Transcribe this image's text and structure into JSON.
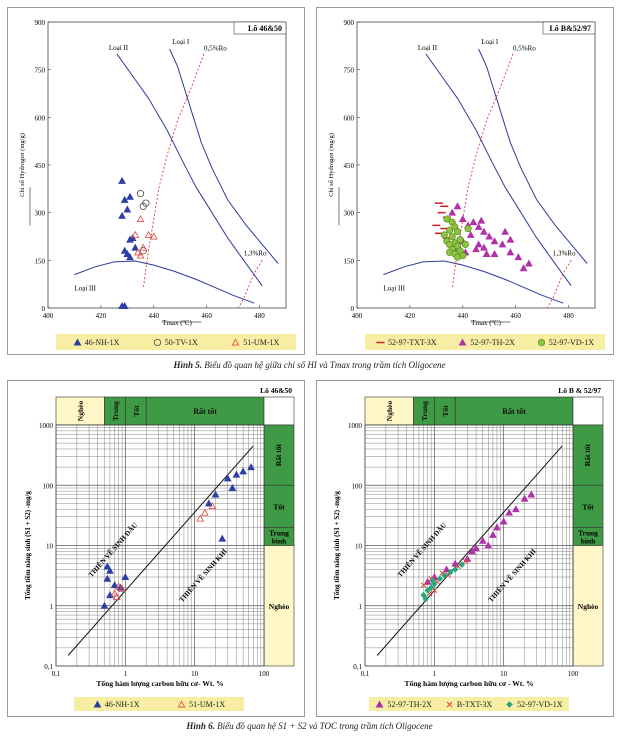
{
  "figures": [
    {
      "caption_label": "Hình 5.",
      "caption_text": "Biểu đồ quan hệ giữa chỉ số HI và Tmax trong trầm tích Oligocene"
    },
    {
      "caption_label": "Hình 6.",
      "caption_text": "Biểu đồ quan hệ S1 + S2 và TOC trong trầm tích Oligocene"
    }
  ],
  "chart_data": [
    {
      "type": "scatter",
      "panel": "Lô 46&50",
      "xlabel": "Tmax (ºC)",
      "ylabel": "Chỉ số Hydrogen (mg/g)",
      "xlim": [
        400,
        490
      ],
      "ylim": [
        0,
        900
      ],
      "xticks": [
        "400",
        "420",
        "440",
        "460",
        "480"
      ],
      "yticks": [
        "0",
        "150",
        "300",
        "450",
        "600",
        "750",
        "900"
      ],
      "annotations": [
        "Loại I",
        "Loại II",
        "Loại III",
        "0,5%Ro",
        "1,3%Ro"
      ],
      "series": [
        {
          "name": "46-NH-1X",
          "marker": "triangle",
          "color": "#2c3fa6",
          "points": [
            [
              428,
              400
            ],
            [
              429,
              340
            ],
            [
              431,
              350
            ],
            [
              430,
              310
            ],
            [
              428,
              290
            ],
            [
              431,
              215
            ],
            [
              432,
              220
            ],
            [
              429,
              180
            ],
            [
              430,
              170
            ],
            [
              431,
              160
            ],
            [
              433,
              190
            ],
            [
              428,
              3
            ],
            [
              429,
              0
            ]
          ]
        },
        {
          "name": "50-TV-1X",
          "marker": "circle-open",
          "color": "#333333",
          "points": [
            [
              435,
              360
            ],
            [
              436,
              320
            ],
            [
              437,
              330
            ],
            [
              436,
              180
            ]
          ]
        },
        {
          "name": "51-UM-1X",
          "marker": "triangle-open",
          "color": "#e0463d",
          "points": [
            [
              435,
              280
            ],
            [
              433,
              230
            ],
            [
              438,
              230
            ],
            [
              440,
              225
            ],
            [
              436,
              190
            ],
            [
              435,
              165
            ],
            [
              434,
              175
            ]
          ]
        }
      ],
      "legend": [
        "46-NH-1X",
        "50-TV-1X",
        "51-UM-1X"
      ]
    },
    {
      "type": "scatter",
      "panel": "Lô B&52/97",
      "xlabel": "Tmax (ºC)",
      "ylabel": "Chỉ số Hydrogen (mg/g)",
      "xlim": [
        400,
        490
      ],
      "ylim": [
        0,
        900
      ],
      "xticks": [
        "400",
        "420",
        "440",
        "460",
        "480"
      ],
      "yticks": [
        "0",
        "150",
        "300",
        "450",
        "600",
        "750",
        "900"
      ],
      "annotations": [
        "Loại I",
        "Loại II",
        "Loại III",
        "0,5%Ro",
        "1,3%Ro"
      ],
      "series": [
        {
          "name": "52-97-TXT-3X",
          "marker": "dash",
          "color": "#d11c2a",
          "points": [
            [
              431,
              330
            ],
            [
              433,
              320
            ],
            [
              432,
              300
            ],
            [
              434,
              285
            ],
            [
              430,
              260
            ],
            [
              433,
              250
            ],
            [
              431,
              235
            ],
            [
              434,
              220
            ]
          ]
        },
        {
          "name": "52-97-TH-2X",
          "marker": "triangle",
          "color": "#b030a8",
          "points": [
            [
              436,
              300
            ],
            [
              438,
              320
            ],
            [
              440,
              280
            ],
            [
              442,
              260
            ],
            [
              444,
              270
            ],
            [
              446,
              255
            ],
            [
              448,
              240
            ],
            [
              443,
              230
            ],
            [
              450,
              225
            ],
            [
              452,
              210
            ],
            [
              446,
              200
            ],
            [
              455,
              200
            ],
            [
              448,
              190
            ],
            [
              452,
              170
            ],
            [
              458,
              175
            ],
            [
              461,
              160
            ],
            [
              465,
              140
            ],
            [
              463,
              125
            ],
            [
              440,
              210
            ],
            [
              445,
              185
            ],
            [
              437,
              190
            ],
            [
              441,
              175
            ],
            [
              456,
              240
            ],
            [
              458,
              215
            ],
            [
              447,
              275
            ],
            [
              449,
              170
            ]
          ]
        },
        {
          "name": "52-97-VD-1X",
          "marker": "circle",
          "color": "#8cc63f",
          "points": [
            [
              434,
              280
            ],
            [
              436,
              270
            ],
            [
              437,
              255
            ],
            [
              435,
              245
            ],
            [
              438,
              240
            ],
            [
              433,
              230
            ],
            [
              436,
              225
            ],
            [
              439,
              215
            ],
            [
              434,
              210
            ],
            [
              437,
              205
            ],
            [
              435,
              200
            ],
            [
              438,
              195
            ],
            [
              436,
              185
            ],
            [
              439,
              180
            ],
            [
              435,
              175
            ],
            [
              437,
              170
            ],
            [
              440,
              165
            ],
            [
              438,
              160
            ],
            [
              441,
              200
            ],
            [
              442,
              250
            ]
          ]
        }
      ],
      "legend": [
        "52-97-TXT-3X",
        "52-97-TH-2X",
        "52-97-VD-1X"
      ]
    },
    {
      "type": "scatter",
      "scale": "log-log",
      "panel": "Lô 46&50",
      "xlabel": "Tổng hàm lượng carbon hữu cơ- Wt. %",
      "ylabel": "Tổng tiềm năng sinh (S1 + S2) -mg/g",
      "xlim": [
        0.1,
        100
      ],
      "ylim": [
        0.1,
        1000
      ],
      "xticks": [
        "0,1",
        "1",
        "10",
        "100"
      ],
      "yticks": [
        "0,1",
        "1",
        "10",
        "100",
        "1000"
      ],
      "top_bands": [
        "Nghèo",
        "Trung",
        "Tốt",
        "Rất tốt"
      ],
      "right_bands": [
        "Rất tốt",
        "Tốt",
        "Trung bình",
        "Nghèo"
      ],
      "annotations": [
        "THIÊN VỀ SINH DẦU",
        "THIÊN VỀ SINH KHÍ"
      ],
      "series": [
        {
          "name": "46-NH-1X",
          "marker": "triangle",
          "color": "#2c3fa6",
          "points": [
            [
              0.55,
              4.5
            ],
            [
              0.6,
              3.8
            ],
            [
              0.55,
              2.8
            ],
            [
              0.7,
              2.2
            ],
            [
              0.85,
              2.0
            ],
            [
              1.0,
              3.0
            ],
            [
              0.5,
              1.0
            ],
            [
              0.6,
              1.5
            ],
            [
              16,
              50
            ],
            [
              20,
              70
            ],
            [
              30,
              130
            ],
            [
              40,
              150
            ],
            [
              50,
              170
            ],
            [
              65,
              200
            ],
            [
              35,
              90
            ],
            [
              25,
              13
            ]
          ]
        },
        {
          "name": "51-UM-1X",
          "marker": "triangle-open",
          "color": "#e0463d",
          "points": [
            [
              0.7,
              1.6
            ],
            [
              0.8,
              2.1
            ],
            [
              0.9,
              1.9
            ],
            [
              0.75,
              1.4
            ],
            [
              12,
              28
            ],
            [
              14,
              35
            ],
            [
              18,
              45
            ]
          ]
        }
      ],
      "legend": [
        "46-NH-1X",
        "51-UM-1X"
      ]
    },
    {
      "type": "scatter",
      "scale": "log-log",
      "panel": "Lô B & 52/97",
      "xlabel": "Tổng hàm lượng carbon hữu cơ - Wt. %",
      "ylabel": "Tổng tiềm năng sinh (S1 + S2) -mg/g",
      "xlim": [
        0.1,
        100
      ],
      "ylim": [
        0.1,
        1000
      ],
      "xticks": [
        "0,1",
        "1",
        "10",
        "100"
      ],
      "yticks": [
        "0,1",
        "1",
        "10",
        "100",
        "1000"
      ],
      "top_bands": [
        "Nghèo",
        "Trung",
        "Tốt",
        "Rất tốt"
      ],
      "right_bands": [
        "Rất tốt",
        "Tốt",
        "Trung bình",
        "Nghèo"
      ],
      "annotations": [
        "THIÊN VỀ SINH DẦU",
        "THIÊN VỀ SINH KHÍ"
      ],
      "series": [
        {
          "name": "52-97-TH-2X",
          "marker": "triangle",
          "color": "#b030a8",
          "points": [
            [
              0.8,
              2.5
            ],
            [
              1.0,
              3.0
            ],
            [
              1.5,
              4.0
            ],
            [
              2.0,
              5.0
            ],
            [
              3.0,
              6.0
            ],
            [
              4.0,
              9.0
            ],
            [
              5.0,
              12
            ],
            [
              7.0,
              15
            ],
            [
              10,
              25
            ],
            [
              15,
              40
            ],
            [
              20,
              60
            ],
            [
              25,
              70
            ],
            [
              3.5,
              8
            ],
            [
              6,
              10
            ],
            [
              8,
              20
            ],
            [
              12,
              35
            ]
          ]
        },
        {
          "name": "B-TXT-3X",
          "marker": "cross",
          "color": "#e0463d",
          "points": [
            [
              0.7,
              2.2
            ],
            [
              0.9,
              2.8
            ],
            [
              1.1,
              2.5
            ],
            [
              1.3,
              3.5
            ],
            [
              1.6,
              3.2
            ],
            [
              2.2,
              4.5
            ],
            [
              2.8,
              5.5
            ],
            [
              1.0,
              1.8
            ],
            [
              0.85,
              1.6
            ]
          ]
        },
        {
          "name": "52-97-VD-1X",
          "marker": "diamond",
          "color": "#2aa77a",
          "points": [
            [
              0.7,
              1.5
            ],
            [
              0.8,
              1.8
            ],
            [
              0.9,
              2.0
            ],
            [
              1.0,
              2.3
            ],
            [
              1.2,
              2.8
            ],
            [
              1.4,
              3.2
            ],
            [
              1.7,
              3.6
            ],
            [
              2.0,
              4.0
            ],
            [
              2.5,
              4.8
            ],
            [
              0.75,
              1.3
            ],
            [
              0.95,
              2.6
            ]
          ]
        }
      ],
      "legend": [
        "52-97-TH-2X",
        "B-TXT-3X",
        "52-97-VD-1X"
      ]
    }
  ]
}
